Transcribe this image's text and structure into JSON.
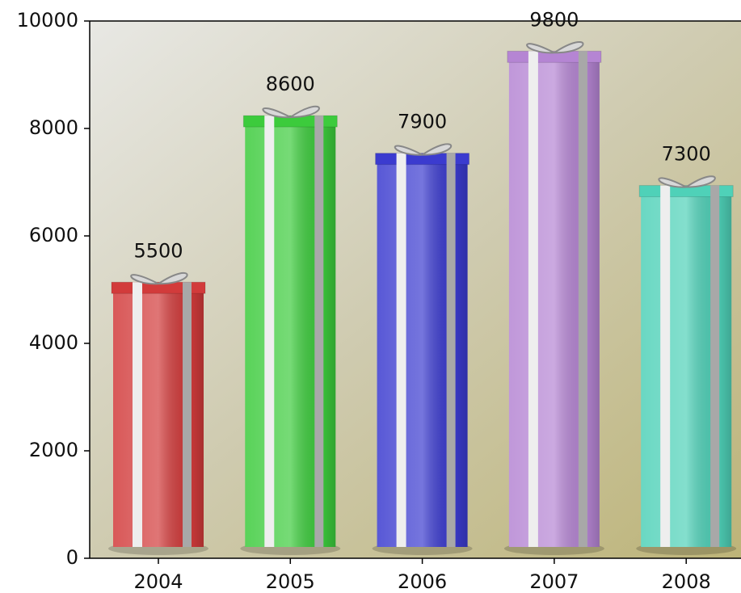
{
  "chart_data": {
    "type": "bar",
    "categories": [
      "2004",
      "2005",
      "2006",
      "2007",
      "2008"
    ],
    "values": [
      5500,
      8600,
      7900,
      9800,
      7300
    ],
    "colors": [
      "#d23b3b",
      "#3ccb3c",
      "#3b3bcf",
      "#b585d3",
      "#4fd1b8"
    ],
    "ylim": [
      0,
      10000
    ],
    "yticks": [
      0,
      2000,
      4000,
      6000,
      8000,
      10000
    ]
  }
}
